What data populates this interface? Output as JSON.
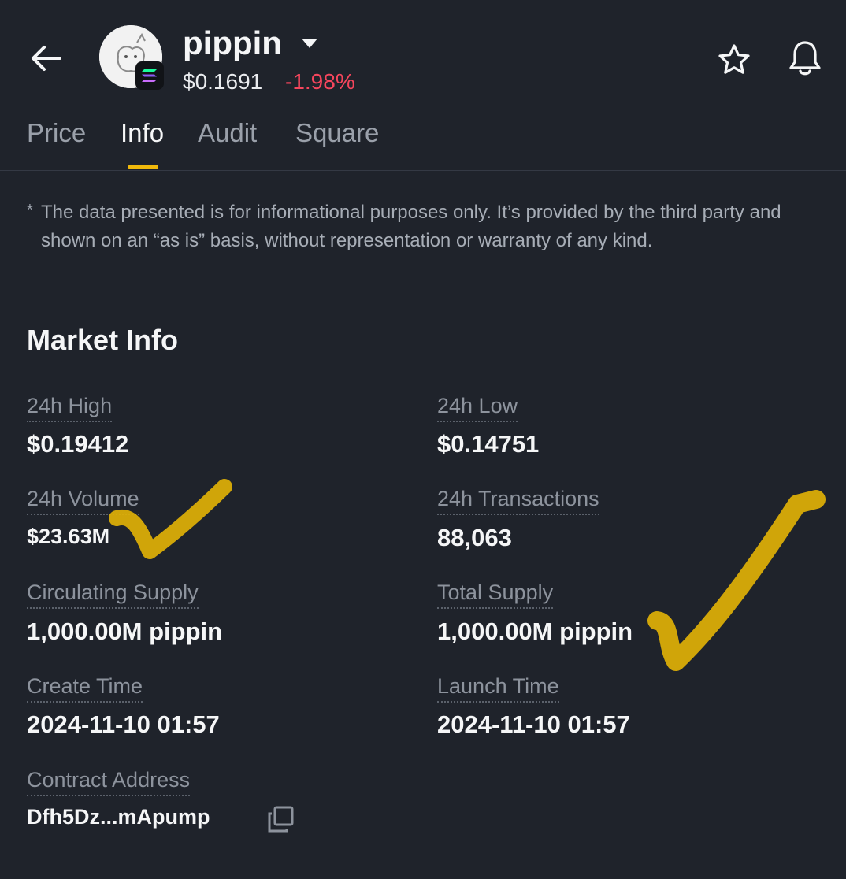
{
  "header": {
    "token_name": "pippin",
    "price": "$0.1691",
    "change": "-1.98%"
  },
  "tabs": [
    {
      "label": "Price",
      "active": false
    },
    {
      "label": "Info",
      "active": true
    },
    {
      "label": "Audit",
      "active": false
    },
    {
      "label": "Square",
      "active": false
    }
  ],
  "disclaimer": "The data presented is for informational purposes only. It’s provided by the third party and shown on an “as is” basis, without representation or warranty of any kind.",
  "disclaimer_marker": "*",
  "market_info": {
    "title": "Market Info",
    "items": [
      {
        "label": "24h High",
        "value": "$0.19412"
      },
      {
        "label": "24h Low",
        "value": "$0.14751"
      },
      {
        "label": "24h Volume",
        "value": "$23.63M"
      },
      {
        "label": "24h Transactions",
        "value": "88,063"
      },
      {
        "label": "Circulating Supply",
        "value": "1,000.00M pippin"
      },
      {
        "label": "Total Supply",
        "value": "1,000.00M pippin"
      },
      {
        "label": "Create Time",
        "value": "2024-11-10 01:57"
      },
      {
        "label": "Launch Time",
        "value": "2024-11-10 01:57"
      },
      {
        "label": "Contract Address",
        "value": "Dfh5Dz...mApump"
      }
    ]
  },
  "icons": {
    "back": "arrow-left-icon",
    "dropdown": "caret-down-icon",
    "favorite": "star-icon",
    "alerts": "bell-icon",
    "chain": "solana-icon",
    "copy": "copy-icon"
  },
  "colors": {
    "background": "#1f232b",
    "negative": "#f6465d",
    "accent": "#f0b90b",
    "annotation": "#e8b800"
  }
}
